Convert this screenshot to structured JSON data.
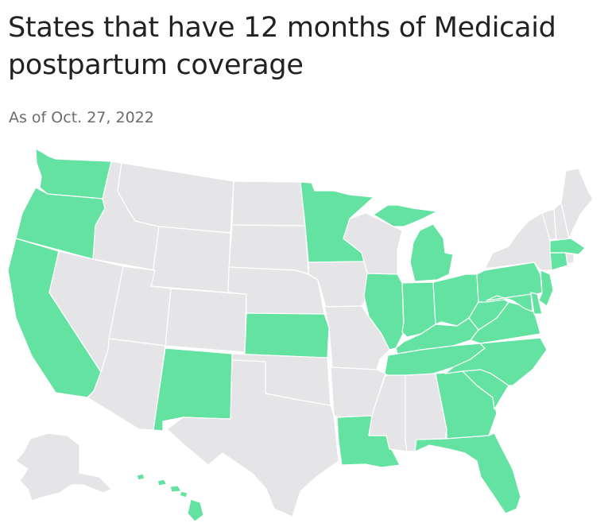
{
  "title": "States that have 12 months of Medicaid postpartum coverage",
  "subtitle": "As of Oct. 27, 2022",
  "colors": {
    "has_coverage": "#63e2a1",
    "no_coverage": "#e5e5e7",
    "border": "#ffffff",
    "title": "#222222",
    "subtitle": "#6b6b6b"
  },
  "states_with_coverage": [
    "WA",
    "OR",
    "CA",
    "NM",
    "KS",
    "MN",
    "MI",
    "IL",
    "IN",
    "OH",
    "KY",
    "TN",
    "WV",
    "VA",
    "PA",
    "NJ",
    "DE",
    "MD",
    "NC",
    "SC",
    "GA",
    "FL",
    "LA",
    "MA",
    "CT",
    "HI"
  ],
  "states_without_coverage": [
    "AK",
    "NV",
    "ID",
    "MT",
    "WY",
    "UT",
    "AZ",
    "CO",
    "ND",
    "SD",
    "NE",
    "OK",
    "TX",
    "IA",
    "MO",
    "AR",
    "WI",
    "MS",
    "AL",
    "NY",
    "VT",
    "NH",
    "ME",
    "RI"
  ]
}
